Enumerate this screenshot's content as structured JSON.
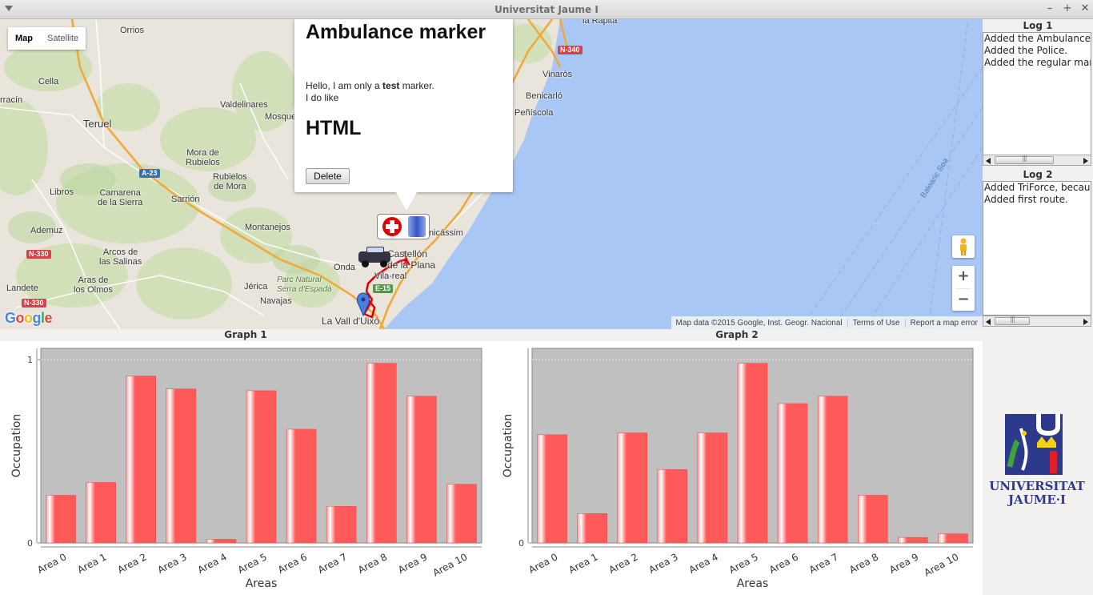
{
  "window": {
    "title": "Universitat Jaume I",
    "controls": [
      "–",
      "+",
      "✕"
    ]
  },
  "map": {
    "map_type_buttons": [
      "Map",
      "Satellite"
    ],
    "active_map_type": "Map",
    "place_labels": [
      {
        "id": "orrios",
        "text": "Orrios"
      },
      {
        "id": "cella",
        "text": "Cella"
      },
      {
        "id": "albarracin",
        "text": "rracín"
      },
      {
        "id": "teruel",
        "text": "Teruel"
      },
      {
        "id": "valdelinares",
        "text": "Valdelinares"
      },
      {
        "id": "mosqueruela",
        "text": "Mosque"
      },
      {
        "id": "mora",
        "text": "Mora de\nRubielos"
      },
      {
        "id": "rubielosmora",
        "text": "Rubielos\nde Mora"
      },
      {
        "id": "sarrion",
        "text": "Sarrión"
      },
      {
        "id": "libros",
        "text": "Libros"
      },
      {
        "id": "camarena",
        "text": "Camarena\nde la Sierra"
      },
      {
        "id": "ademuz",
        "text": "Ademuz"
      },
      {
        "id": "montanejos",
        "text": "Montanejos"
      },
      {
        "id": "arcos",
        "text": "Arcos de\nlas Salinas"
      },
      {
        "id": "aras",
        "text": "Aras de\nlos Olmos"
      },
      {
        "id": "landete",
        "text": "Landete"
      },
      {
        "id": "jerica",
        "text": "Jérica"
      },
      {
        "id": "navajas",
        "text": "Navajas"
      },
      {
        "id": "onda",
        "text": "Onda"
      },
      {
        "id": "castellon",
        "text": "Castellón\nde la Plana"
      },
      {
        "id": "vilareal",
        "text": "Vila-real"
      },
      {
        "id": "lavall",
        "text": "La Vall d'Uixó"
      },
      {
        "id": "vinaros",
        "text": "Vinaròs"
      },
      {
        "id": "benicarlo",
        "text": "Benicarló"
      },
      {
        "id": "peniscola",
        "text": "Peñíscola"
      },
      {
        "id": "rapita",
        "text": "la Ràpita"
      },
      {
        "id": "benicassim",
        "text": "nicàssim"
      },
      {
        "id": "parque",
        "text": "Parc Natural\nSerra d'Espadà"
      }
    ],
    "road_badges": [
      {
        "id": "n340",
        "text": "N-340",
        "color": "#d2434b"
      },
      {
        "id": "a23",
        "text": "A-23",
        "color": "#3670b6"
      },
      {
        "id": "n330a",
        "text": "N-330",
        "color": "#d2434b"
      },
      {
        "id": "n330b",
        "text": "N-330",
        "color": "#d2434b"
      },
      {
        "id": "e15",
        "text": "E-15",
        "color": "#4e9a47"
      }
    ],
    "sea_label": "Balearic Sea",
    "info_window": {
      "heading": "Ambulance marker",
      "line1_pre": "Hello, I am only a ",
      "line1_bold": "test",
      "line1_post": " marker.",
      "line2": "I do like",
      "heading2": "HTML",
      "delete_label": "Delete"
    },
    "attribution": [
      "Map data ©2015 Google, Inst. Geogr. Nacional",
      "Terms of Use",
      "Report a map error"
    ],
    "google_logo": [
      "G",
      "o",
      "o",
      "g",
      "l",
      "e"
    ],
    "colors": {
      "water": "#a9c7f5",
      "land": "#e9e5dc",
      "route": "#e00000",
      "highway": "#f2a93a"
    }
  },
  "log1": {
    "title": "Log 1",
    "lines": [
      "Added the Ambulance.",
      "Added the Police.",
      "Added the regular marker."
    ]
  },
  "log2": {
    "title": "Log 2",
    "lines": [
      "Added TriForce, because.",
      "Added first route."
    ]
  },
  "graph1": {
    "title": "Graph 1"
  },
  "graph2": {
    "title": "Graph 2"
  },
  "chart_data": [
    {
      "type": "bar",
      "title": "Graph 1",
      "xlabel": "Areas",
      "ylabel": "Occupation",
      "categories": [
        "Area 0",
        "Area 1",
        "Area 2",
        "Area 3",
        "Area 4",
        "Area 5",
        "Area 6",
        "Area 7",
        "Area 8",
        "Area 9",
        "Area 10"
      ],
      "values": [
        0.26,
        0.33,
        0.91,
        0.84,
        0.02,
        0.83,
        0.62,
        0.2,
        0.98,
        0.8,
        0.32
      ],
      "ylim": [
        0,
        1
      ],
      "yticks": [
        "0",
        "1"
      ],
      "bar_color": "#ff5a5a",
      "plot_bg": "#c0c0c0"
    },
    {
      "type": "bar",
      "title": "Graph 2",
      "xlabel": "Areas",
      "ylabel": "Occupation",
      "categories": [
        "Area 0",
        "Area 1",
        "Area 2",
        "Area 3",
        "Area 4",
        "Area 5",
        "Area 6",
        "Area 7",
        "Area 8",
        "Area 9",
        "Area 10"
      ],
      "values": [
        0.59,
        0.16,
        0.6,
        0.4,
        0.6,
        0.98,
        0.76,
        0.8,
        0.26,
        0.03,
        0.05
      ],
      "ylim": [
        0,
        1
      ],
      "yticks": [
        "0"
      ],
      "bar_color": "#ff5a5a",
      "plot_bg": "#c0c0c0"
    }
  ],
  "logo": {
    "line1": "UNIVERSITAT",
    "line2": "JAUME·I"
  }
}
